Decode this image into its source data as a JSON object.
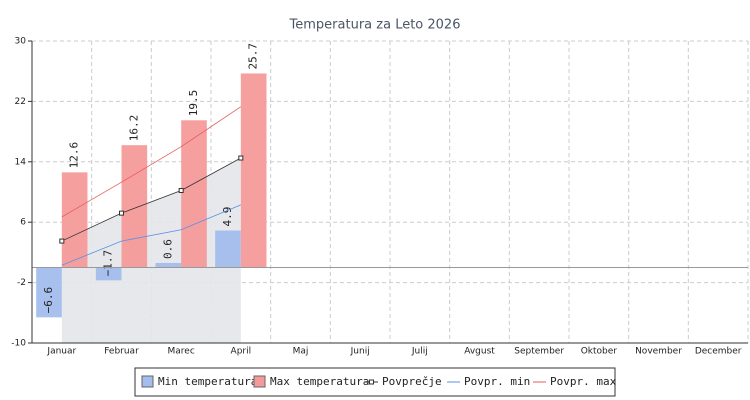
{
  "chart_data": {
    "type": "bar",
    "title": "Temperatura za Leto 2026",
    "categories": [
      "Januar",
      "Februar",
      "Marec",
      "April",
      "Maj",
      "Junij",
      "Julij",
      "Avgust",
      "September",
      "Oktober",
      "November",
      "December"
    ],
    "series": [
      {
        "name": "Min temperatura",
        "type": "bar",
        "color": "#a3bdec",
        "values": [
          -6.6,
          -1.7,
          0.6,
          4.9,
          null,
          null,
          null,
          null,
          null,
          null,
          null,
          null
        ],
        "value_labels": [
          "−6.6",
          "−1.7",
          "0.6",
          "4.9",
          null,
          null,
          null,
          null,
          null,
          null,
          null,
          null
        ]
      },
      {
        "name": "Max temperatura",
        "type": "bar",
        "color": "#f59a9a",
        "values": [
          12.6,
          16.2,
          19.5,
          25.7,
          null,
          null,
          null,
          null,
          null,
          null,
          null,
          null
        ]
      },
      {
        "name": "Povprečje",
        "type": "line",
        "color": "#333333",
        "markers": true,
        "fill": "#e4e6ea",
        "values": [
          3.5,
          7.2,
          10.2,
          14.5,
          null,
          null,
          null,
          null,
          null,
          null,
          null,
          null
        ]
      },
      {
        "name": "Povpr. min",
        "type": "line",
        "color": "#5b8ee6",
        "markers": false,
        "values": [
          0.3,
          3.5,
          5.0,
          8.3,
          null,
          null,
          null,
          null,
          null,
          null,
          null,
          null
        ]
      },
      {
        "name": "Povpr. max",
        "type": "line",
        "color": "#e85a5a",
        "markers": false,
        "values": [
          6.7,
          11.3,
          16.0,
          21.3,
          null,
          null,
          null,
          null,
          null,
          null,
          null,
          null
        ]
      }
    ],
    "ylim": [
      -10,
      30
    ],
    "yticks": [
      -10,
      -2,
      6,
      14,
      22,
      30
    ],
    "grid": true
  }
}
